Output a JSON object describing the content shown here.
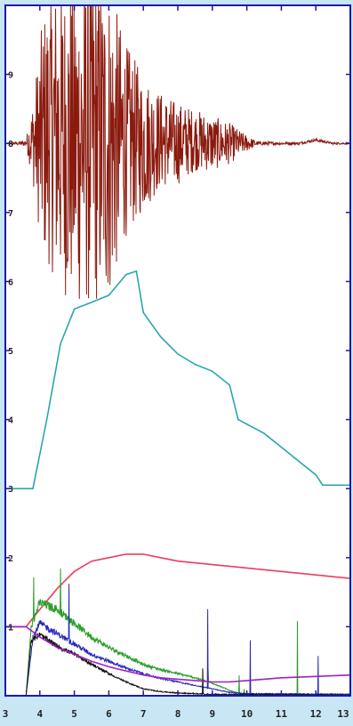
{
  "chart_data": {
    "type": "line",
    "title": "",
    "xlabel": "",
    "ylabel": "",
    "xlim": [
      3,
      13
    ],
    "ylim": [
      0,
      10
    ],
    "x_ticks": [
      "3",
      "4",
      "5",
      "6",
      "7",
      "8",
      "9",
      "10",
      "11",
      "12",
      "13"
    ],
    "y_ticks": [
      "1",
      "2",
      "3",
      "4",
      "5",
      "6",
      "7",
      "8",
      "9"
    ],
    "grid": false,
    "legend": "none",
    "colors": {
      "background": "#c9e6f5",
      "plot": "#ffffff",
      "frame": "#1a1aa8"
    },
    "series": [
      {
        "color": "#8b1a0e",
        "noisy": true,
        "points": [
          [
            3.0,
            8.0
          ],
          [
            3.5,
            8.0
          ],
          [
            4.0,
            8.05
          ],
          [
            4.3,
            8.2
          ],
          [
            4.6,
            8.1
          ],
          [
            5.0,
            8.0
          ],
          [
            5.5,
            8.1
          ],
          [
            6.0,
            8.0
          ],
          [
            6.5,
            8.05
          ],
          [
            7.0,
            8.0
          ],
          [
            7.5,
            8.05
          ],
          [
            8.0,
            8.0
          ],
          [
            8.5,
            8.05
          ],
          [
            9.0,
            8.0
          ],
          [
            9.5,
            8.0
          ],
          [
            10.0,
            8.0
          ],
          [
            10.5,
            8.0
          ],
          [
            11.0,
            8.0
          ],
          [
            11.5,
            8.0
          ],
          [
            12.0,
            8.05
          ],
          [
            12.5,
            8.0
          ],
          [
            13.0,
            8.0
          ]
        ],
        "amplitude": [
          [
            3.0,
            0.0
          ],
          [
            3.6,
            0.05
          ],
          [
            3.8,
            0.6
          ],
          [
            4.1,
            1.8
          ],
          [
            4.5,
            2.2
          ],
          [
            5.0,
            2.4
          ],
          [
            5.5,
            2.5
          ],
          [
            6.0,
            2.3
          ],
          [
            6.5,
            1.4
          ],
          [
            7.0,
            1.0
          ],
          [
            7.5,
            0.7
          ],
          [
            8.0,
            0.6
          ],
          [
            8.5,
            0.45
          ],
          [
            9.0,
            0.4
          ],
          [
            9.5,
            0.3
          ],
          [
            9.9,
            0.15
          ],
          [
            10.3,
            0.03
          ],
          [
            11.0,
            0.02
          ],
          [
            12.0,
            0.02
          ],
          [
            13.0,
            0.01
          ]
        ]
      },
      {
        "color": "#2aa6ad",
        "points": [
          [
            3.0,
            3.0
          ],
          [
            3.8,
            3.0
          ],
          [
            4.2,
            4.0
          ],
          [
            4.6,
            5.1
          ],
          [
            5.0,
            5.6
          ],
          [
            5.5,
            5.7
          ],
          [
            6.0,
            5.8
          ],
          [
            6.5,
            6.1
          ],
          [
            6.8,
            6.15
          ],
          [
            7.0,
            5.55
          ],
          [
            7.5,
            5.2
          ],
          [
            8.0,
            4.95
          ],
          [
            8.5,
            4.8
          ],
          [
            9.0,
            4.7
          ],
          [
            9.5,
            4.5
          ],
          [
            9.75,
            4.0
          ],
          [
            10.5,
            3.8
          ],
          [
            11.0,
            3.6
          ],
          [
            11.5,
            3.4
          ],
          [
            12.0,
            3.2
          ],
          [
            12.2,
            3.05
          ],
          [
            13.0,
            3.05
          ]
        ]
      },
      {
        "color": "#e8405a",
        "points": [
          [
            3.0,
            1.0
          ],
          [
            3.6,
            1.0
          ],
          [
            4.0,
            1.25
          ],
          [
            4.5,
            1.55
          ],
          [
            5.0,
            1.8
          ],
          [
            5.5,
            1.95
          ],
          [
            6.0,
            2.0
          ],
          [
            6.5,
            2.05
          ],
          [
            7.0,
            2.05
          ],
          [
            7.5,
            2.0
          ],
          [
            8.0,
            1.95
          ],
          [
            9.0,
            1.9
          ],
          [
            10.0,
            1.85
          ],
          [
            11.0,
            1.8
          ],
          [
            12.0,
            1.75
          ],
          [
            13.0,
            1.7
          ]
        ]
      },
      {
        "color": "#2a9e2a",
        "noisy": true,
        "points": [
          [
            3.0,
            0.0
          ],
          [
            3.6,
            0.0
          ],
          [
            3.75,
            1.0
          ],
          [
            4.0,
            1.35
          ],
          [
            4.5,
            1.25
          ],
          [
            5.0,
            1.05
          ],
          [
            5.5,
            0.85
          ],
          [
            6.0,
            0.7
          ],
          [
            6.5,
            0.58
          ],
          [
            7.0,
            0.45
          ],
          [
            7.5,
            0.38
          ],
          [
            8.0,
            0.32
          ],
          [
            8.5,
            0.26
          ],
          [
            9.0,
            0.18
          ],
          [
            9.5,
            0.08
          ],
          [
            9.8,
            0.03
          ],
          [
            10.5,
            0.02
          ],
          [
            13.0,
            0.02
          ]
        ]
      },
      {
        "color": "#2a2ab8",
        "noisy": true,
        "points": [
          [
            3.0,
            0.0
          ],
          [
            3.6,
            0.0
          ],
          [
            3.8,
            0.85
          ],
          [
            4.0,
            1.05
          ],
          [
            4.5,
            0.9
          ],
          [
            5.0,
            0.75
          ],
          [
            5.5,
            0.6
          ],
          [
            6.0,
            0.5
          ],
          [
            6.5,
            0.4
          ],
          [
            7.0,
            0.32
          ],
          [
            7.5,
            0.25
          ],
          [
            8.0,
            0.2
          ],
          [
            8.5,
            0.15
          ],
          [
            9.0,
            0.1
          ],
          [
            9.5,
            0.05
          ],
          [
            10.0,
            0.03
          ],
          [
            13.0,
            0.02
          ]
        ]
      },
      {
        "color": "#111111",
        "noisy": true,
        "points": [
          [
            3.0,
            0.0
          ],
          [
            3.6,
            0.0
          ],
          [
            3.75,
            0.8
          ],
          [
            4.0,
            0.88
          ],
          [
            4.5,
            0.72
          ],
          [
            5.0,
            0.6
          ],
          [
            5.5,
            0.46
          ],
          [
            6.0,
            0.32
          ],
          [
            6.5,
            0.2
          ],
          [
            7.0,
            0.1
          ],
          [
            7.5,
            0.06
          ],
          [
            8.0,
            0.04
          ],
          [
            9.0,
            0.02
          ],
          [
            10.0,
            0.02
          ],
          [
            13.0,
            0.01
          ]
        ]
      },
      {
        "color": "#a020c0",
        "points": [
          [
            3.0,
            1.0
          ],
          [
            3.6,
            1.0
          ],
          [
            4.0,
            0.85
          ],
          [
            4.5,
            0.7
          ],
          [
            5.0,
            0.6
          ],
          [
            5.5,
            0.5
          ],
          [
            6.0,
            0.42
          ],
          [
            6.5,
            0.36
          ],
          [
            7.0,
            0.3
          ],
          [
            7.5,
            0.26
          ],
          [
            8.0,
            0.24
          ],
          [
            8.5,
            0.22
          ],
          [
            9.0,
            0.2
          ],
          [
            9.5,
            0.2
          ],
          [
            10.0,
            0.22
          ],
          [
            10.5,
            0.24
          ],
          [
            11.0,
            0.26
          ],
          [
            12.0,
            0.28
          ],
          [
            13.0,
            0.3
          ]
        ]
      }
    ]
  }
}
